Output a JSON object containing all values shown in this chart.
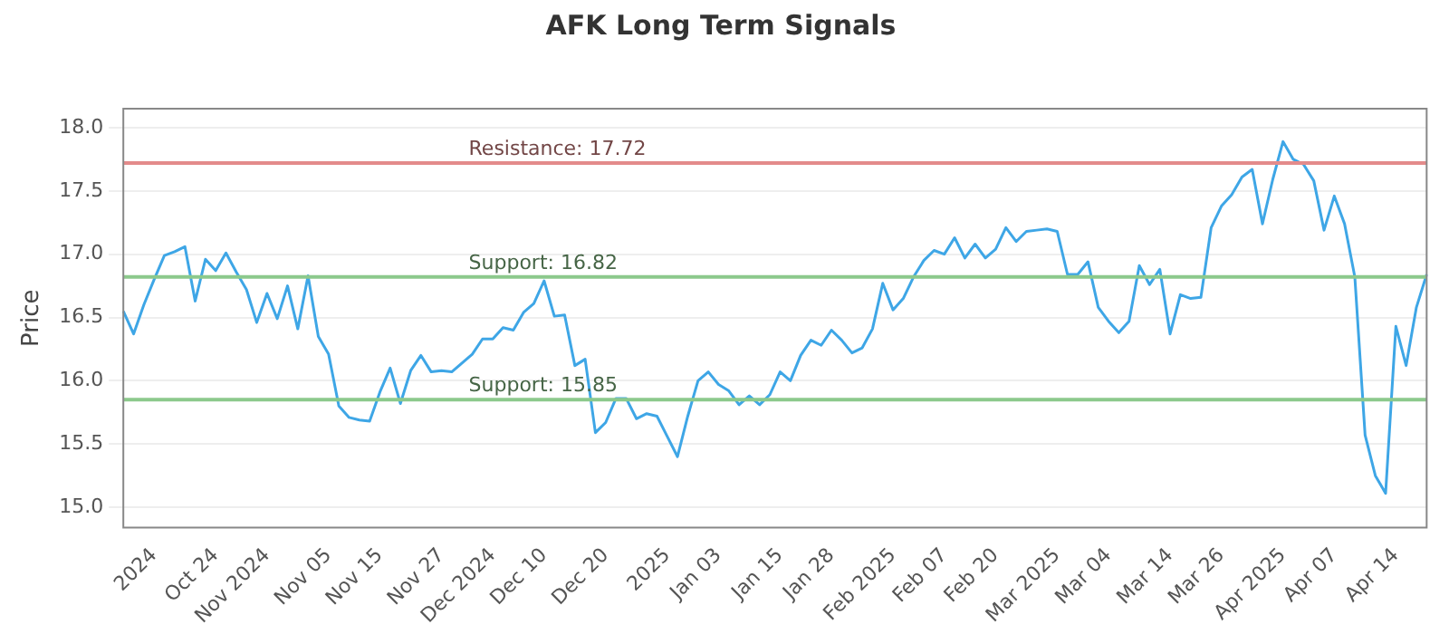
{
  "chart_data": {
    "type": "line",
    "title": "AFK Long Term Signals",
    "ylabel": "Price",
    "categories": [
      null,
      null,
      null,
      "2024",
      null,
      null,
      null,
      null,
      null,
      "Oct 24",
      null,
      null,
      null,
      null,
      "Nov 2024",
      null,
      null,
      null,
      null,
      null,
      "Nov 05",
      null,
      null,
      null,
      null,
      "Nov 15",
      null,
      null,
      null,
      null,
      null,
      "Nov 27",
      null,
      null,
      null,
      null,
      "Dec 2024",
      null,
      null,
      null,
      null,
      "Dec 10",
      null,
      null,
      null,
      null,
      null,
      "Dec 20",
      null,
      null,
      null,
      null,
      null,
      "2025",
      null,
      null,
      null,
      null,
      "Jan 03",
      null,
      null,
      null,
      null,
      null,
      "Jan 15",
      null,
      null,
      null,
      null,
      "Jan 28",
      null,
      null,
      null,
      null,
      null,
      "Feb 2025",
      null,
      null,
      null,
      null,
      "Feb 07",
      null,
      null,
      null,
      null,
      "Feb 20",
      null,
      null,
      null,
      null,
      null,
      "Mar 2025",
      null,
      null,
      null,
      null,
      "Mar 04",
      null,
      null,
      null,
      null,
      null,
      "Mar 14",
      null,
      null,
      null,
      null,
      "Mar 26",
      null,
      null,
      null,
      null,
      null,
      "Apr 2025",
      null,
      null,
      null,
      null,
      "Apr 07",
      null,
      null,
      null,
      null,
      null,
      "Apr 14",
      null,
      null,
      null
    ],
    "series": [
      {
        "color": "#3ea6e6",
        "values": [
          16.55,
          16.37,
          16.6,
          16.8,
          16.99,
          17.02,
          17.06,
          16.63,
          16.96,
          16.87,
          17.01,
          16.86,
          16.72,
          16.46,
          16.69,
          16.49,
          16.75,
          16.41,
          16.83,
          16.35,
          16.21,
          15.8,
          15.71,
          15.69,
          15.68,
          15.91,
          16.1,
          15.82,
          16.08,
          16.2,
          16.07,
          16.08,
          16.07,
          16.14,
          16.21,
          16.33,
          16.33,
          16.42,
          16.4,
          16.54,
          16.61,
          16.79,
          16.51,
          16.52,
          16.12,
          16.17,
          15.59,
          15.67,
          15.86,
          15.86,
          15.7,
          15.74,
          15.72,
          15.56,
          15.4,
          15.72,
          16.0,
          16.07,
          15.97,
          15.92,
          15.81,
          15.88,
          15.81,
          15.89,
          16.07,
          16.0,
          16.2,
          16.32,
          16.28,
          16.4,
          16.32,
          16.22,
          16.26,
          16.41,
          16.77,
          16.56,
          16.65,
          16.82,
          16.95,
          17.03,
          17.0,
          17.13,
          16.97,
          17.08,
          16.97,
          17.04,
          17.21,
          17.1,
          17.18,
          17.19,
          17.2,
          17.18,
          16.84,
          16.84,
          16.94,
          16.58,
          16.47,
          16.38,
          16.47,
          16.91,
          16.76,
          16.88,
          16.37,
          16.68,
          16.65,
          16.66,
          17.21,
          17.38,
          17.47,
          17.61,
          17.67,
          17.24,
          17.59,
          17.89,
          17.75,
          17.71,
          17.58,
          17.19,
          17.46,
          17.24,
          16.82,
          15.57,
          15.25,
          15.11,
          16.43,
          16.12,
          16.58,
          16.84
        ]
      }
    ],
    "ylim": [
      14.84,
      18.15
    ],
    "yticks": [
      {
        "value": 15,
        "label": "15.0"
      },
      {
        "value": 15.5,
        "label": "15.5"
      },
      {
        "value": 16,
        "label": "16.0"
      },
      {
        "value": 16.5,
        "label": "16.5"
      },
      {
        "value": 17,
        "label": "17.0"
      },
      {
        "value": 17.5,
        "label": "17.5"
      },
      {
        "value": 18,
        "label": "18.0"
      }
    ],
    "grid": "y",
    "marker": "none",
    "line_style": "solid",
    "ref_lines": [
      {
        "axis": "y",
        "value": 17.72,
        "label": "Resistance: 17.72",
        "color": "#e38b8b"
      },
      {
        "axis": "y",
        "value": 16.82,
        "label": "Support: 16.82",
        "color": "#8cc98c"
      },
      {
        "axis": "y",
        "value": 15.85,
        "label": "Support: 15.85",
        "color": "#8cc98c"
      }
    ]
  }
}
